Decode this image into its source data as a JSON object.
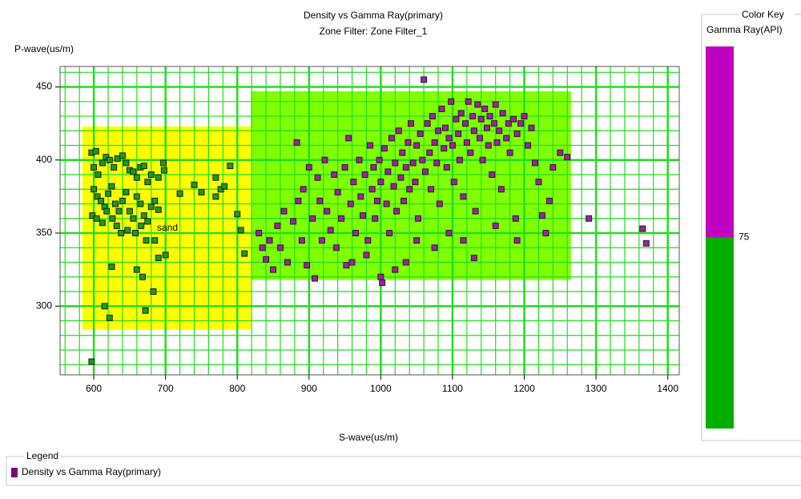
{
  "chart_data": {
    "type": "scatter",
    "title": "Density vs Gamma Ray(primary)",
    "subtitle": "Zone Filter: Zone Filter_1",
    "x_label": "S-wave(us/m)",
    "y_label": "P-wave(us/m)",
    "xlim": [
      553,
      1416
    ],
    "ylim": [
      253,
      464
    ],
    "xticks": [
      600,
      700,
      800,
      900,
      1000,
      1100,
      1200,
      1300,
      1400
    ],
    "yticks": [
      300,
      350,
      400,
      450
    ],
    "grid": true,
    "grid_color": "#22dd22",
    "zones": [
      {
        "label": "sand",
        "x": [
          584,
          819
        ],
        "y": [
          284,
          423
        ],
        "color": "#ffff00"
      },
      {
        "x": [
          819,
          1265
        ],
        "y": [
          318,
          447
        ],
        "color": "#80ff00"
      }
    ],
    "series": [
      {
        "color": "#1a9c1a",
        "x": [
          597,
          603,
          600,
          606,
          612,
          617,
          622,
          628,
          633,
          640,
          645,
          650,
          655,
          660,
          665,
          670,
          675,
          680,
          690,
          697,
          698,
          600,
          605,
          610,
          615,
          620,
          625,
          630,
          635,
          640,
          645,
          650,
          655,
          660,
          665,
          670,
          675,
          680,
          685,
          690,
          598,
          604,
          612,
          618,
          626,
          632,
          638,
          647,
          658,
          666,
          673,
          685,
          720,
          740,
          750,
          770,
          777,
          782,
          790,
          770,
          800,
          805,
          810,
          625,
          660,
          700,
          690,
          668,
          683,
          615,
          622,
          672,
          597
        ],
        "values": [
          405,
          406,
          395,
          390,
          398,
          402,
          400,
          395,
          401,
          403,
          398,
          393,
          392,
          388,
          395,
          396,
          385,
          390,
          388,
          398,
          393,
          380,
          375,
          372,
          368,
          377,
          382,
          370,
          365,
          372,
          378,
          365,
          360,
          375,
          370,
          362,
          358,
          368,
          372,
          366,
          362,
          360,
          357,
          365,
          360,
          355,
          350,
          352,
          350,
          355,
          345,
          345,
          377,
          383,
          378,
          375,
          380,
          382,
          396,
          388,
          363,
          352,
          336,
          327,
          325,
          335,
          333,
          320,
          310,
          300,
          292,
          297,
          262
        ]
      },
      {
        "color": "#a020a0",
        "x": [
          830,
          835,
          840,
          845,
          850,
          856,
          860,
          865,
          870,
          878,
          883,
          885,
          890,
          892,
          897,
          900,
          905,
          908,
          912,
          915,
          918,
          922,
          925,
          930,
          935,
          938,
          940,
          945,
          950,
          952,
          955,
          958,
          962,
          965,
          970,
          972,
          975,
          978,
          982,
          985,
          988,
          990,
          992,
          995,
          998,
          1000,
          1002,
          1005,
          1008,
          1010,
          1012,
          1015,
          1018,
          1020,
          1022,
          1025,
          1028,
          1030,
          1032,
          1035,
          1038,
          1040,
          1042,
          1045,
          1048,
          1050,
          1052,
          1055,
          1058,
          1060,
          1062,
          1065,
          1068,
          1070,
          1072,
          1075,
          1078,
          1080,
          1082,
          1085,
          1088,
          1090,
          1092,
          1095,
          1098,
          1100,
          1102,
          1105,
          1108,
          1110,
          1112,
          1115,
          1118,
          1120,
          1122,
          1125,
          1128,
          1130,
          1132,
          1135,
          1138,
          1140,
          1142,
          1145,
          1148,
          1150,
          1152,
          1155,
          1158,
          1160,
          1162,
          1165,
          1168,
          1170,
          1175,
          1178,
          1180,
          1185,
          1188,
          1190,
          1195,
          1200,
          1205,
          1210,
          1215,
          1220,
          1225,
          1230,
          1235,
          1240,
          1250,
          1260,
          1190,
          1160,
          1130,
          1115,
          1095,
          1075,
          1050,
          1035,
          1020,
          1000,
          980,
          960,
          1290,
          1365,
          1370
        ],
        "values": [
          350,
          340,
          332,
          345,
          325,
          355,
          340,
          365,
          330,
          358,
          412,
          372,
          345,
          380,
          328,
          395,
          360,
          319,
          388,
          372,
          345,
          400,
          365,
          352,
          390,
          340,
          378,
          360,
          395,
          328,
          415,
          370,
          385,
          350,
          400,
          375,
          362,
          390,
          345,
          410,
          380,
          395,
          360,
          372,
          400,
          385,
          316,
          408,
          370,
          392,
          350,
          415,
          382,
          398,
          365,
          420,
          388,
          405,
          372,
          395,
          412,
          380,
          425,
          398,
          385,
          410,
          360,
          418,
          400,
          455,
          392,
          425,
          405,
          380,
          430,
          412,
          398,
          420,
          370,
          435,
          408,
          422,
          395,
          415,
          440,
          410,
          385,
          428,
          418,
          400,
          432,
          375,
          425,
          412,
          440,
          405,
          430,
          420,
          365,
          438,
          415,
          428,
          400,
          435,
          422,
          410,
          430,
          390,
          425,
          438,
          412,
          420,
          380,
          432,
          415,
          425,
          405,
          428,
          360,
          418,
          425,
          430,
          410,
          422,
          398,
          385,
          362,
          350,
          372,
          395,
          405,
          402,
          345,
          355,
          333,
          345,
          350,
          340,
          345,
          330,
          325,
          320,
          335,
          330,
          360,
          353,
          343
        ]
      }
    ],
    "color_key": {
      "title": "Color Key",
      "label": "Gamma Ray(API)",
      "threshold": 75,
      "colors": [
        "#00b000",
        "#c000c0"
      ]
    },
    "legend": {
      "title": "Legend",
      "entries": [
        {
          "label": "Density vs Gamma Ray(primary)",
          "color": "#800080"
        }
      ]
    }
  }
}
